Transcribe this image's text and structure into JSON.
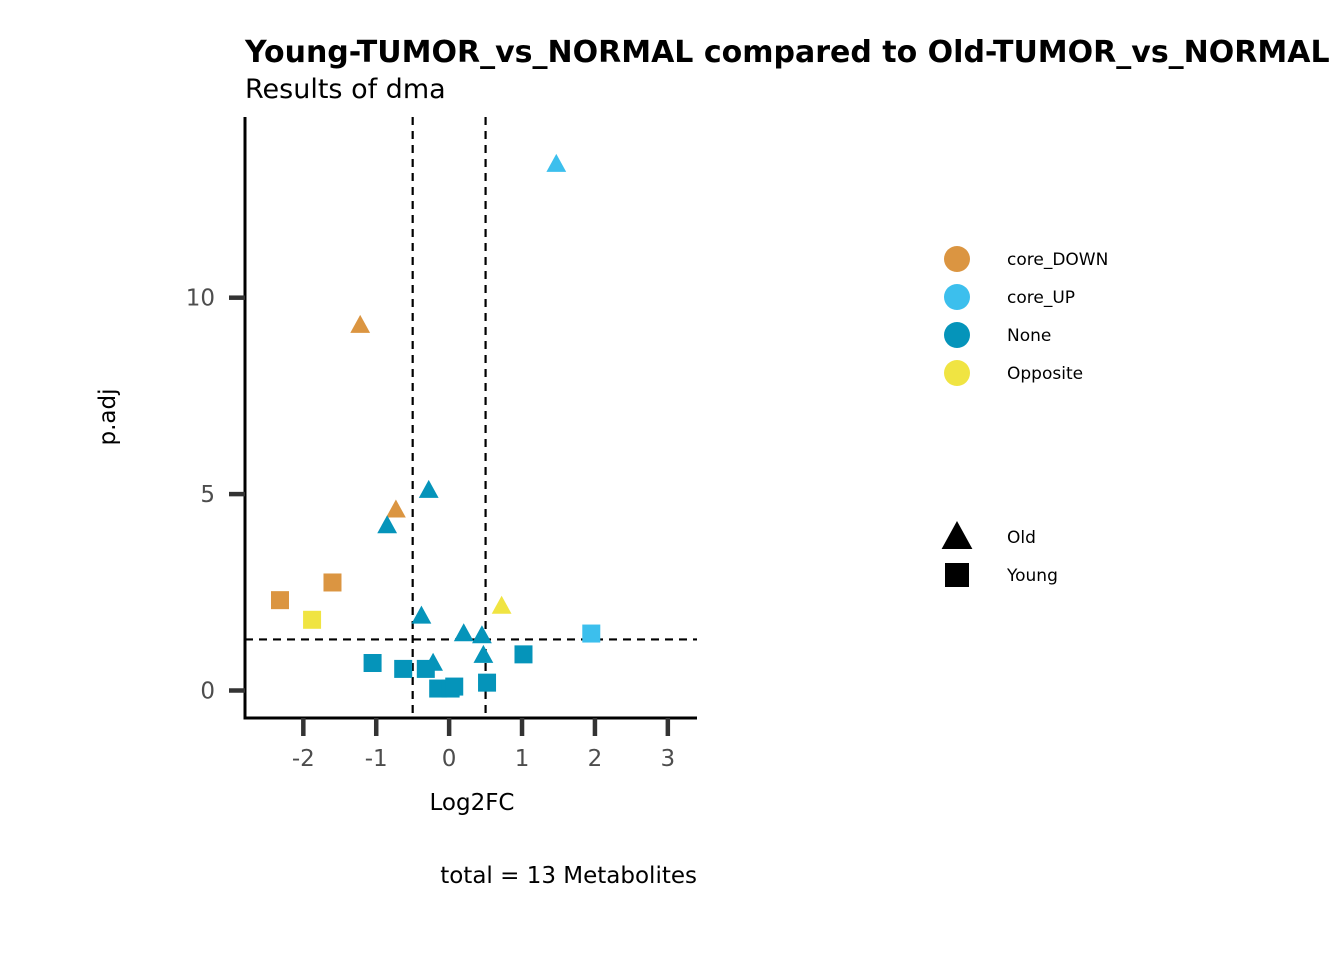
{
  "chart_data": {
    "type": "scatter",
    "title": "Young-TUMOR_vs_NORMAL compared to Old-TUMOR_vs_NORMAL",
    "subtitle": "Results of dma",
    "xlabel": "Log2FC",
    "ylabel": "p.adj",
    "caption": "total = 13 Metabolites",
    "xlim": [
      -2.8,
      3.4
    ],
    "ylim": [
      -0.7,
      14.6
    ],
    "x_ticks": [
      {
        "value": -2,
        "label": "-2"
      },
      {
        "value": -1,
        "label": "-1"
      },
      {
        "value": 0,
        "label": "0"
      },
      {
        "value": 1,
        "label": "1"
      },
      {
        "value": 2,
        "label": "2"
      },
      {
        "value": 3,
        "label": "3"
      }
    ],
    "y_ticks": [
      {
        "value": 0,
        "label": "0"
      },
      {
        "value": 5,
        "label": "5"
      },
      {
        "value": 10,
        "label": "10"
      }
    ],
    "vlines": [
      -0.5,
      0.5
    ],
    "hlines": [
      1.3
    ],
    "grid": false,
    "legend_position": "right",
    "color_legend": [
      {
        "name": "core_DOWN",
        "color": "#DB9541"
      },
      {
        "name": "core_UP",
        "color": "#3CBFED"
      },
      {
        "name": "None",
        "color": "#0594BA"
      },
      {
        "name": "Opposite",
        "color": "#F0E442"
      }
    ],
    "shape_legend": [
      {
        "name": "Old",
        "shape": "triangle"
      },
      {
        "name": "Young",
        "shape": "square"
      }
    ],
    "points": [
      {
        "x": 1.47,
        "y": 13.4,
        "color": "core_UP",
        "shape": "triangle"
      },
      {
        "x": -1.22,
        "y": 9.3,
        "color": "core_DOWN",
        "shape": "triangle"
      },
      {
        "x": -0.28,
        "y": 5.1,
        "color": "None",
        "shape": "triangle"
      },
      {
        "x": -0.73,
        "y": 4.6,
        "color": "core_DOWN",
        "shape": "triangle"
      },
      {
        "x": -0.85,
        "y": 4.2,
        "color": "None",
        "shape": "triangle"
      },
      {
        "x": -1.6,
        "y": 2.75,
        "color": "core_DOWN",
        "shape": "square"
      },
      {
        "x": -2.32,
        "y": 2.3,
        "color": "core_DOWN",
        "shape": "square"
      },
      {
        "x": -1.88,
        "y": 1.8,
        "color": "Opposite",
        "shape": "square"
      },
      {
        "x": 0.72,
        "y": 2.15,
        "color": "Opposite",
        "shape": "triangle"
      },
      {
        "x": -0.38,
        "y": 1.9,
        "color": "None",
        "shape": "triangle"
      },
      {
        "x": 0.2,
        "y": 1.45,
        "color": "None",
        "shape": "triangle"
      },
      {
        "x": 0.45,
        "y": 1.4,
        "color": "None",
        "shape": "triangle"
      },
      {
        "x": 1.95,
        "y": 1.45,
        "color": "core_UP",
        "shape": "square"
      },
      {
        "x": 0.47,
        "y": 0.9,
        "color": "None",
        "shape": "triangle"
      },
      {
        "x": 1.02,
        "y": 0.92,
        "color": "None",
        "shape": "square"
      },
      {
        "x": -0.22,
        "y": 0.7,
        "color": "None",
        "shape": "triangle"
      },
      {
        "x": -1.05,
        "y": 0.7,
        "color": "None",
        "shape": "square"
      },
      {
        "x": -0.63,
        "y": 0.55,
        "color": "None",
        "shape": "square"
      },
      {
        "x": -0.32,
        "y": 0.55,
        "color": "None",
        "shape": "square"
      },
      {
        "x": 0.52,
        "y": 0.2,
        "color": "None",
        "shape": "square"
      },
      {
        "x": -0.15,
        "y": 0.05,
        "color": "None",
        "shape": "square"
      },
      {
        "x": 0.02,
        "y": 0.05,
        "color": "None",
        "shape": "square"
      },
      {
        "x": 0.07,
        "y": 0.1,
        "color": "None",
        "shape": "square"
      }
    ]
  }
}
